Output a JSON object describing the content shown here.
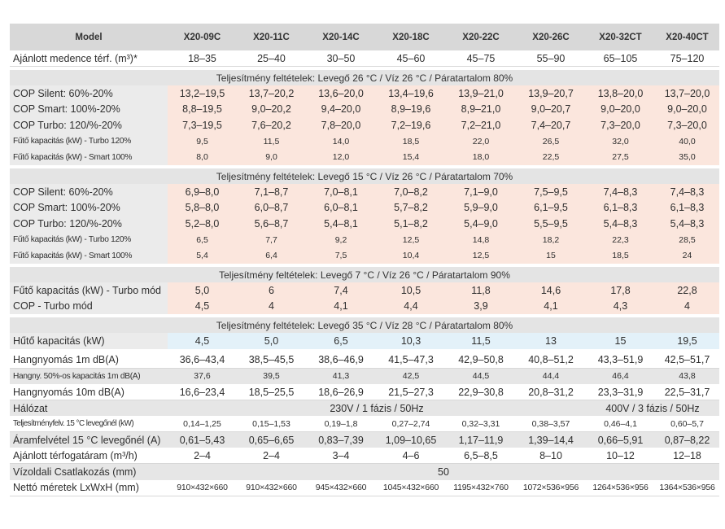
{
  "header": {
    "label": "Model",
    "models": [
      "X20-09C",
      "X20-11C",
      "X20-14C",
      "X20-18C",
      "X20-22C",
      "X20-26C",
      "X20-32CT",
      "X20-40CT"
    ]
  },
  "pool_volume": {
    "label": "Ajánlott medence térf. (m³)*",
    "values": [
      "18–35",
      "25–40",
      "30–50",
      "45–60",
      "45–75",
      "55–90",
      "65–105",
      "75–120"
    ]
  },
  "section1": {
    "title": "Teljesítmény feltételek: Levegő 26 °C / Víz 26 °C / Páratartalom 80%",
    "rows": [
      {
        "label": "COP Silent: 60%-20%",
        "values": [
          "13,2–19,5",
          "13,7–20,2",
          "13,6–20,0",
          "13,4–19,6",
          "13,9–21,0",
          "13,9–20,7",
          "13,8–20,0",
          "13,7–20,0"
        ]
      },
      {
        "label": "COP Smart: 100%-20%",
        "values": [
          "8,8–19,5",
          "9,0–20,2",
          "9,4–20,0",
          "8,9–19,6",
          "8,9–21,0",
          "9,0–20,7",
          "9,0–20,0",
          "9,0–20,0"
        ]
      },
      {
        "label": "COP Turbo: 120/%-20%",
        "values": [
          "7,3–19,5",
          "7,6–20,2",
          "7,8–20,0",
          "7,2–19,6",
          "7,2–21,0",
          "7,4–20,7",
          "7,3–20,0",
          "7,3–20,0"
        ]
      },
      {
        "label": "Fűtő kapacitás (kW) - Turbo 120%",
        "values": [
          "9,5",
          "11,5",
          "14,0",
          "18,5",
          "22,0",
          "26,5",
          "32,0",
          "40,0"
        ]
      },
      {
        "label": "Fűtő kapacitás (kW) - Smart 100%",
        "values": [
          "8,0",
          "9,0",
          "12,0",
          "15,4",
          "18,0",
          "22,5",
          "27,5",
          "35,0"
        ]
      }
    ]
  },
  "section2": {
    "title": "Teljesítmény feltételek: Levegő 15 °C / Víz 26 °C / Páratartalom 70%",
    "rows": [
      {
        "label": "COP Silent: 60%-20%",
        "values": [
          "6,9–8,0",
          "7,1–8,7",
          "7,0–8,1",
          "7,0–8,2",
          "7,1–9,0",
          "7,5–9,5",
          "7,4–8,3",
          "7,4–8,3"
        ]
      },
      {
        "label": "COP Smart: 100%-20%",
        "values": [
          "5,8–8,0",
          "6,0–8,7",
          "6,0–8,1",
          "5,7–8,2",
          "5,9–9,0",
          "6,1–9,5",
          "6,1–8,3",
          "6,1–8,3"
        ]
      },
      {
        "label": "COP Turbo: 120/%-20%",
        "values": [
          "5,2–8,0",
          "5,6–8,7",
          "5,4–8,1",
          "5,1–8,2",
          "5,4–9,0",
          "5,5–9,5",
          "5,4–8,3",
          "5,4–8,3"
        ]
      },
      {
        "label": "Fűtő kapacitás (kW) - Turbo 120%",
        "values": [
          "6,5",
          "7,7",
          "9,2",
          "12,5",
          "14,8",
          "18,2",
          "22,3",
          "28,5"
        ]
      },
      {
        "label": "Fűtő kapacitás (kW) - Smart 100%",
        "values": [
          "5,4",
          "6,4",
          "7,5",
          "10,4",
          "12,5",
          "15",
          "18,5",
          "24"
        ]
      }
    ]
  },
  "section3": {
    "title": "Teljesítmény feltételek: Levegő 7 °C / Víz 26 °C / Páratartalom 90%",
    "rows": [
      {
        "label": "Fűtő kapacitás (kW) - Turbo mód",
        "values": [
          "5,0",
          "6",
          "7,4",
          "10,5",
          "11,8",
          "14,6",
          "17,8",
          "22,8"
        ]
      },
      {
        "label": "COP - Turbo mód",
        "values": [
          "4,5",
          "4",
          "4,1",
          "4,4",
          "3,9",
          "4,1",
          "4,3",
          "4"
        ]
      }
    ]
  },
  "section4": {
    "title": "Teljesítmény feltételek: Levegő 35 °C / Víz 28 °C / Páratartalom 80%",
    "rows": [
      {
        "label": "Hűtő kapacitás (kW)",
        "values": [
          "4,5",
          "5,0",
          "6,5",
          "10,3",
          "11,5",
          "13",
          "15",
          "19,5"
        ]
      }
    ]
  },
  "general": {
    "noise1m": {
      "label": "Hangnyomás 1m dB(A)",
      "values": [
        "36,6–43,4",
        "38,5–45,5",
        "38,6–46,9",
        "41,5–47,3",
        "42,9–50,8",
        "40,8–51,2",
        "43,3–51,9",
        "42,5–51,7"
      ]
    },
    "noise50": {
      "label": "Hangny. 50%-os kapacitás 1m dB(A)",
      "values": [
        "37,6",
        "39,5",
        "41,3",
        "42,5",
        "44,5",
        "44,4",
        "46,4",
        "43,8"
      ]
    },
    "noise10m": {
      "label": "Hangnyomás 10m dB(A)",
      "values": [
        "16,6–23,4",
        "18,5–25,5",
        "18,6–26,9",
        "21,5–27,3",
        "22,9–30,8",
        "20,8–31,2",
        "23,3–31,9",
        "22,5–31,7"
      ]
    },
    "network": {
      "label": "Hálózat",
      "value_single": "230V / 1 fázis / 50Hz",
      "value_three": "400V / 3 fázis / 50Hz"
    },
    "power15": {
      "label": "Teljesítményfelv. 15 °C levegőnél (kW)",
      "values": [
        "0,14–1,25",
        "0,15–1,53",
        "0,19–1,8",
        "0,27–2,74",
        "0,32–3,31",
        "0,38–3,57",
        "0,46–4,1",
        "0,60–5,7"
      ]
    },
    "current15": {
      "label": "Áramfelvétel 15 °C levegőnél (A)",
      "values": [
        "0,61–5,43",
        "0,65–6,65",
        "0,83–7,39",
        "1,09–10,65",
        "1,17–11,9",
        "1,39–14,4",
        "0,66–5,91",
        "0,87–8,22"
      ]
    },
    "flow": {
      "label": "Ajánlott térfogatáram (m³/h)",
      "values": [
        "2–4",
        "2–4",
        "3–4",
        "4–6",
        "6,5–8,5",
        "8–10",
        "10–12",
        "12–18"
      ]
    },
    "connection": {
      "label": "Vízoldali Csatlakozás (mm)",
      "value": "50"
    },
    "dimensions": {
      "label": "Nettó méretek LxWxH (mm)",
      "values": [
        "910×432×660",
        "910×432×660",
        "945×432×660",
        "1045×432×660",
        "1195×432×760",
        "1072×536×956",
        "1264×536×956",
        "1364×536×956"
      ]
    }
  }
}
